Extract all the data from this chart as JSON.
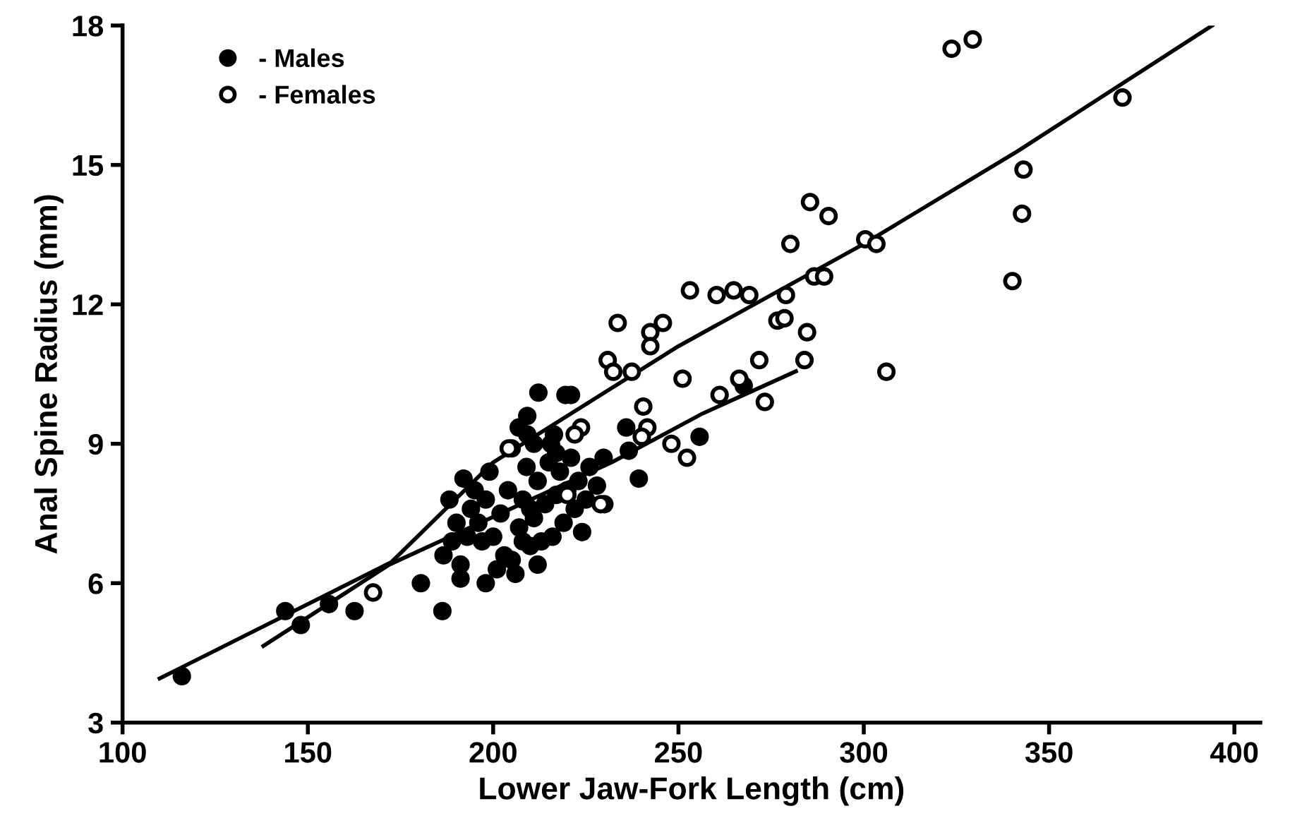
{
  "chart_data": {
    "type": "scatter",
    "xlabel": "Lower Jaw-Fork Length (cm)",
    "ylabel": "Anal Spine Radius (mm)",
    "xlim": [
      100,
      407
    ],
    "ylim": [
      3,
      18
    ],
    "xticks": [
      100,
      150,
      200,
      250,
      300,
      350,
      400
    ],
    "yticks": [
      3,
      6,
      9,
      12,
      15,
      18
    ],
    "grid": false,
    "legend": "top left",
    "series": [
      {
        "name": "- Males",
        "marker": "circle",
        "color": "#000000",
        "x": [
          116,
          143.9,
          148.1,
          155.7,
          162.6,
          180.5,
          186.3,
          191.2,
          191.2,
          186.6,
          188.9,
          190.1,
          188.2,
          192,
          212.2,
          219.5,
          221,
          209.2,
          206.9,
          209.2,
          216.4,
          215.6,
          235.9,
          236.6,
          255.7,
          267.6,
          239.3,
          229.8,
          200,
          202,
          204,
          205,
          207,
          208,
          209,
          210,
          211,
          212,
          213,
          214,
          215,
          216,
          217,
          218,
          219,
          220,
          221,
          222,
          223,
          225,
          226,
          198,
          196,
          194,
          199,
          201,
          203,
          206,
          208,
          210,
          212,
          197,
          224,
          228,
          230,
          205,
          211,
          217,
          195,
          193,
          198
        ],
        "values": [
          4.0,
          5.4,
          5.1,
          5.55,
          5.4,
          6.0,
          5.4,
          6.4,
          6.1,
          6.6,
          6.9,
          7.3,
          7.8,
          8.25,
          10.1,
          10.05,
          10.05,
          9.6,
          9.35,
          9.2,
          9.2,
          9.0,
          9.35,
          8.85,
          9.15,
          10.25,
          8.25,
          8.7,
          7.0,
          7.5,
          8.0,
          6.5,
          7.2,
          7.8,
          8.5,
          6.8,
          7.4,
          8.2,
          6.9,
          7.7,
          8.6,
          7.0,
          7.9,
          8.4,
          7.3,
          8.0,
          8.7,
          7.6,
          8.2,
          7.8,
          8.5,
          7.8,
          7.3,
          7.6,
          8.4,
          6.3,
          6.6,
          6.2,
          6.9,
          7.6,
          6.4,
          6.9,
          7.1,
          8.1,
          7.7,
          8.9,
          9.0,
          8.8,
          8.0,
          7.0,
          6.0
        ]
      },
      {
        "name": "- Females",
        "marker": "circle",
        "color": "#ffffff",
        "x": [
          323.7,
          329.4,
          369.8,
          343.1,
          342.7,
          340.1,
          306.1,
          300.4,
          303.4,
          285.5,
          290.5,
          280.2,
          286.6,
          289.3,
          253.1,
          260.3,
          264.9,
          269.1,
          279,
          276.7,
          278.6,
          284.7,
          233.6,
          245.8,
          242.4,
          242.4,
          230.9,
          232.4,
          237.4,
          251.1,
          271.8,
          284,
          266.4,
          261.1,
          273.3,
          240.5,
          241.6,
          240.1,
          223.7,
          248.1,
          252.3,
          204.2,
          167.6,
          222,
          229,
          220
        ],
        "values": [
          17.5,
          17.7,
          16.45,
          14.9,
          13.95,
          12.5,
          10.55,
          13.4,
          13.3,
          14.2,
          13.9,
          13.3,
          12.6,
          12.6,
          12.3,
          12.2,
          12.3,
          12.2,
          12.2,
          11.65,
          11.7,
          11.4,
          11.6,
          11.6,
          11.4,
          11.1,
          10.8,
          10.55,
          10.55,
          10.4,
          10.8,
          10.8,
          10.4,
          10.05,
          9.9,
          9.8,
          9.35,
          9.15,
          9.35,
          9.0,
          8.7,
          8.9,
          5.8,
          9.2,
          7.7,
          7.9
        ]
      },
      {
        "type": "line",
        "color": "#000000",
        "x": [
          110,
          172.5,
          200,
          250,
          300,
          341.6,
          394
        ],
        "values": [
          3.95,
          6.45,
          8.6,
          11.1,
          13.3,
          15.3,
          18.0
        ]
      },
      {
        "type": "line",
        "color": "#000000",
        "x": [
          138,
          172,
          232,
          256.5,
          281.7
        ],
        "values": [
          4.65,
          6.4,
          8.6,
          9.65,
          10.56
        ]
      }
    ]
  }
}
